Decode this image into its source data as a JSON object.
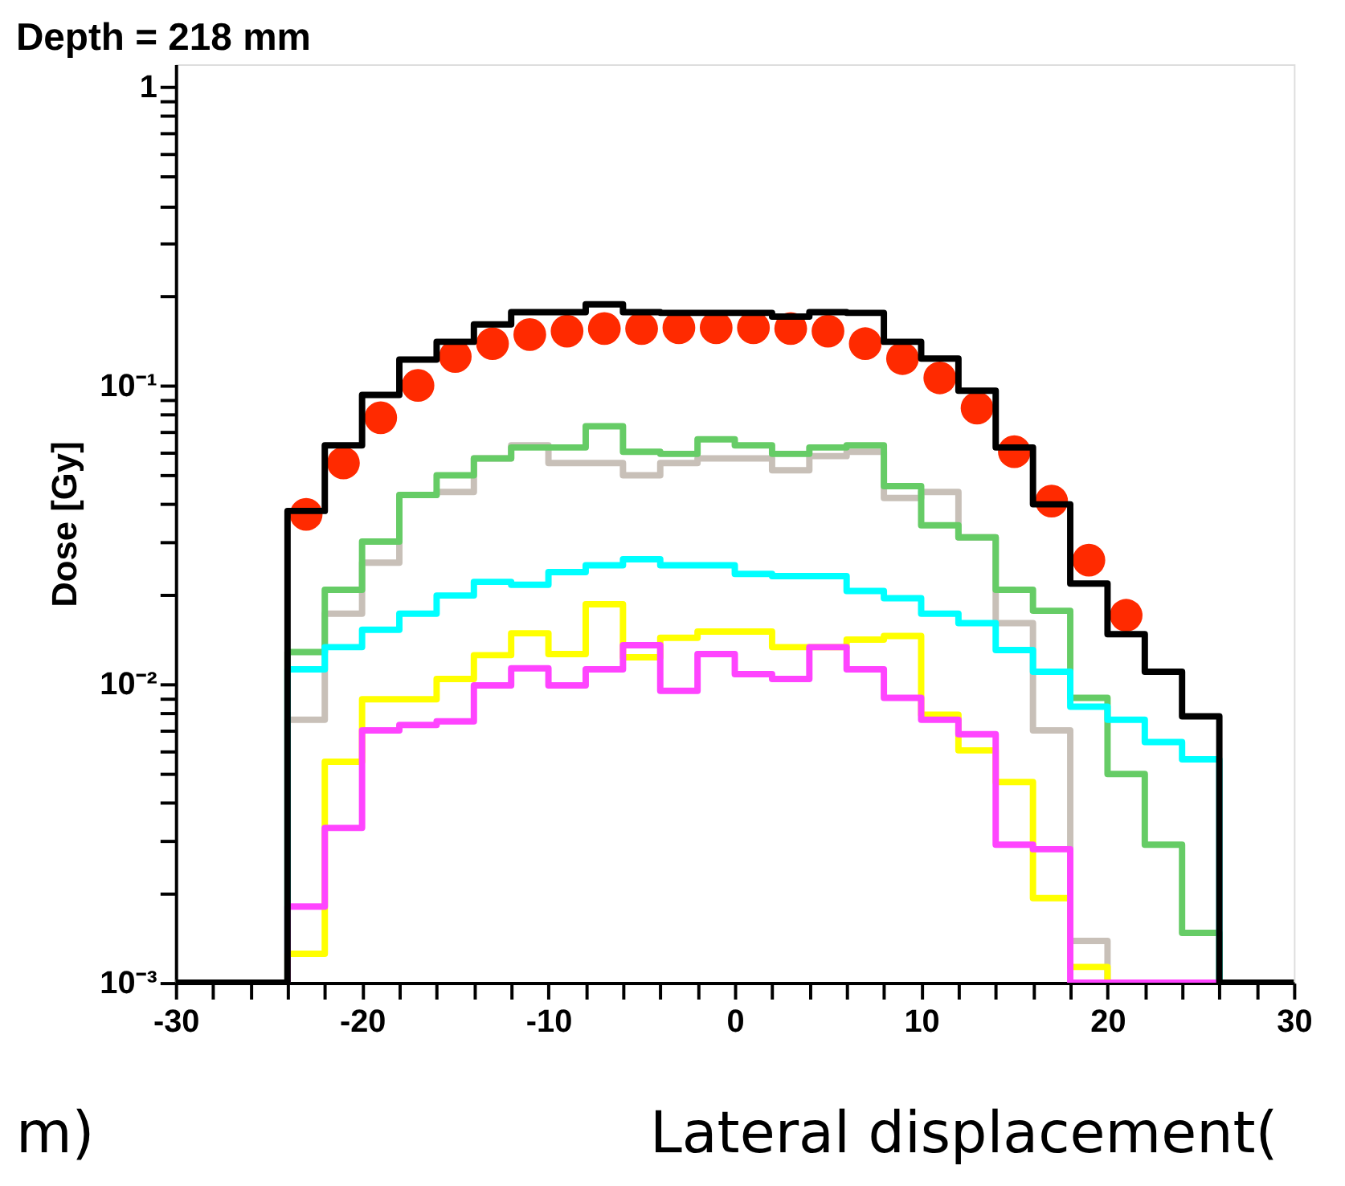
{
  "chart_data": {
    "type": "histogram",
    "title": "Depth = 218  mm",
    "ylabel": "Dose [Gy]",
    "annotations": [
      "Lateral displacement(",
      "m)"
    ],
    "bins": [
      -30,
      -28,
      -26,
      -24,
      -22,
      -20,
      -18,
      -16,
      -14,
      -12,
      -10,
      -8,
      -6,
      -4,
      -2,
      0,
      2,
      4,
      6,
      8,
      10,
      12,
      14,
      16,
      18,
      20,
      22,
      24,
      26,
      28,
      30
    ],
    "series": [
      {
        "color": "#c8c0b8",
        "values": [
          0.001,
          0.001,
          0.001,
          0.0076,
          0.0172,
          0.0255,
          0.043,
          0.044,
          0.057,
          0.063,
          0.055,
          0.055,
          0.05,
          0.055,
          0.057,
          0.057,
          0.052,
          0.058,
          0.06,
          0.042,
          0.044,
          0.031,
          0.016,
          0.007,
          0.00138,
          0.001,
          0.001,
          0.001,
          0.001,
          0.001
        ]
      },
      {
        "color": "#66cc66",
        "values": [
          0.001,
          0.001,
          0.001,
          0.0128,
          0.0207,
          0.03,
          0.043,
          0.05,
          0.057,
          0.062,
          0.062,
          0.073,
          0.06,
          0.059,
          0.066,
          0.063,
          0.059,
          0.062,
          0.063,
          0.046,
          0.034,
          0.031,
          0.0207,
          0.0176,
          0.009,
          0.005,
          0.0029,
          0.00147,
          0.001,
          0.001
        ]
      },
      {
        "color": "#00ffff",
        "values": [
          0.001,
          0.001,
          0.001,
          0.0112,
          0.0133,
          0.0152,
          0.0172,
          0.0198,
          0.022,
          0.0215,
          0.0237,
          0.025,
          0.0262,
          0.025,
          0.025,
          0.0234,
          0.023,
          0.023,
          0.0205,
          0.0194,
          0.0172,
          0.016,
          0.013,
          0.011,
          0.0084,
          0.0076,
          0.0064,
          0.0056,
          0.001,
          0.001
        ]
      },
      {
        "color": "#ffff00",
        "values": [
          0.001,
          0.001,
          0.001,
          0.00125,
          0.0055,
          0.0089,
          0.0089,
          0.0104,
          0.0125,
          0.0148,
          0.0126,
          0.0185,
          0.0123,
          0.0143,
          0.015,
          0.015,
          0.0133,
          0.0133,
          0.0141,
          0.0145,
          0.0079,
          0.006,
          0.0047,
          0.00192,
          0.00113,
          0.001,
          0.001,
          0.001,
          0.001,
          0.001
        ]
      },
      {
        "color": "#ff44ff",
        "values": [
          0.001,
          0.001,
          0.001,
          0.0018,
          0.0033,
          0.007,
          0.0073,
          0.0075,
          0.0099,
          0.0113,
          0.0099,
          0.0112,
          0.0135,
          0.0095,
          0.0126,
          0.0108,
          0.0104,
          0.0133,
          0.0112,
          0.009,
          0.0076,
          0.0068,
          0.0029,
          0.0028,
          0.001,
          0.001,
          0.001,
          0.001,
          0.001,
          0.001
        ]
      },
      {
        "color": "#000000",
        "values": [
          0.001,
          0.001,
          0.001,
          0.038,
          0.063,
          0.093,
          0.122,
          0.14,
          0.16,
          0.176,
          0.176,
          0.187,
          0.176,
          0.175,
          0.175,
          0.175,
          0.17,
          0.176,
          0.175,
          0.14,
          0.123,
          0.096,
          0.062,
          0.04,
          0.0217,
          0.0147,
          0.011,
          0.0078,
          0.001,
          0.001
        ]
      },
      {
        "type": "scatter",
        "marker": "circle",
        "color": "#ff2a00",
        "x": [
          -23,
          -21,
          -19,
          -17,
          -15,
          -13,
          -11,
          -9,
          -7,
          -5,
          -3,
          -1,
          1,
          3,
          5,
          7,
          9,
          11,
          13,
          15,
          17,
          19,
          21
        ],
        "values": [
          0.037,
          0.055,
          0.078,
          0.1,
          0.125,
          0.138,
          0.148,
          0.152,
          0.155,
          0.155,
          0.156,
          0.156,
          0.156,
          0.155,
          0.152,
          0.138,
          0.123,
          0.106,
          0.084,
          0.06,
          0.041,
          0.026,
          0.017
        ]
      }
    ],
    "log": "y",
    "grid": false,
    "xlim": [
      -30,
      30
    ],
    "ylim": [
      0.001,
      1.19
    ],
    "xticks": [
      -30,
      {
        "value": -28,
        "label": null
      },
      {
        "value": -26,
        "label": null
      },
      {
        "value": -24,
        "label": null
      },
      {
        "value": -22,
        "label": null
      },
      -20,
      {
        "value": -18,
        "label": null
      },
      {
        "value": -16,
        "label": null
      },
      {
        "value": -14,
        "label": null
      },
      {
        "value": -12,
        "label": null
      },
      -10,
      {
        "value": -8,
        "label": null
      },
      {
        "value": -6,
        "label": null
      },
      {
        "value": -4,
        "label": null
      },
      {
        "value": -2,
        "label": null
      },
      0,
      {
        "value": 2,
        "label": null
      },
      {
        "value": 4,
        "label": null
      },
      {
        "value": 6,
        "label": null
      },
      {
        "value": 8,
        "label": null
      },
      10,
      {
        "value": 12,
        "label": null
      },
      {
        "value": 14,
        "label": null
      },
      {
        "value": 16,
        "label": null
      },
      {
        "value": 18,
        "label": null
      },
      20,
      {
        "value": 22,
        "label": null
      },
      {
        "value": 24,
        "label": null
      },
      {
        "value": 26,
        "label": null
      },
      {
        "value": 28,
        "label": null
      },
      30
    ],
    "yticks": [
      {
        "value": 0.001,
        "label": "10⁻³"
      },
      {
        "value": 0.002,
        "label": null
      },
      {
        "value": 0.003,
        "label": null
      },
      {
        "value": 0.004,
        "label": null
      },
      {
        "value": 0.005,
        "label": null
      },
      {
        "value": 0.006,
        "label": null
      },
      {
        "value": 0.007,
        "label": null
      },
      {
        "value": 0.008,
        "label": null
      },
      {
        "value": 0.009,
        "label": null
      },
      {
        "value": 0.01,
        "label": "10⁻²"
      },
      {
        "value": 0.02,
        "label": null
      },
      {
        "value": 0.03,
        "label": null
      },
      {
        "value": 0.04,
        "label": null
      },
      {
        "value": 0.05,
        "label": null
      },
      {
        "value": 0.06,
        "label": null
      },
      {
        "value": 0.07,
        "label": null
      },
      {
        "value": 0.08,
        "label": null
      },
      {
        "value": 0.09,
        "label": null
      },
      {
        "value": 0.1,
        "label": "10⁻¹"
      },
      {
        "value": 0.2,
        "label": null
      },
      {
        "value": 0.3,
        "label": null
      },
      {
        "value": 0.4,
        "label": null
      },
      {
        "value": 0.5,
        "label": null
      },
      {
        "value": 0.6,
        "label": null
      },
      {
        "value": 0.7,
        "label": null
      },
      {
        "value": 0.8,
        "label": null
      },
      {
        "value": 0.9,
        "label": null
      },
      1
    ]
  }
}
